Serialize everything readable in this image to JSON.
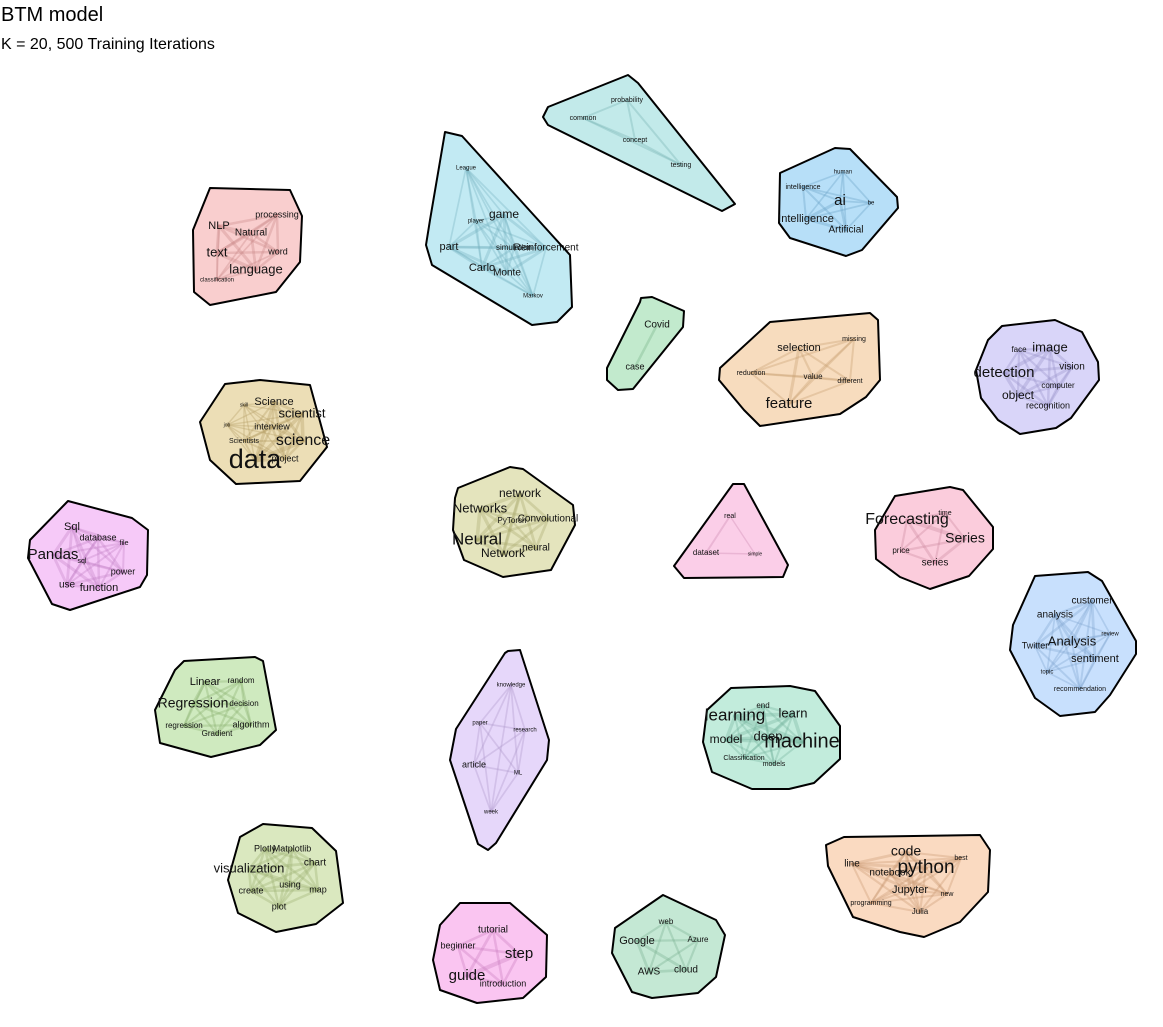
{
  "header": {
    "title": "BTM model",
    "subtitle": "K = 20, 500 Training Iterations"
  },
  "topics": [
    {
      "id": "nlp",
      "color": "#f4a6a6",
      "terms": [
        "NLP",
        "processing",
        "Natural",
        "text",
        "word",
        "language",
        "classification"
      ]
    },
    {
      "id": "reinforcement",
      "color": "#8fd8ea",
      "terms": [
        "League",
        "game",
        "player",
        "part",
        "simulation",
        "Reinforcement",
        "Carlo",
        "Monte",
        "Markov"
      ]
    },
    {
      "id": "probability",
      "color": "#8fd8d8",
      "terms": [
        "probability",
        "common",
        "concept",
        "testing"
      ]
    },
    {
      "id": "ai",
      "color": "#7cc4f2",
      "terms": [
        "human",
        "intelligence",
        "ai",
        "be",
        "Intelligence",
        "Artificial"
      ]
    },
    {
      "id": "covid",
      "color": "#8fd9a4",
      "terms": [
        "Covid",
        "case"
      ]
    },
    {
      "id": "feature",
      "color": "#f0c088",
      "terms": [
        "selection",
        "missing",
        "reduction",
        "value",
        "different",
        "feature"
      ]
    },
    {
      "id": "vision",
      "color": "#b9b3f4",
      "terms": [
        "face",
        "image",
        "detection",
        "vision",
        "computer",
        "object",
        "recognition"
      ]
    },
    {
      "id": "datascience",
      "color": "#dcc27a",
      "terms": [
        "Science",
        "skill",
        "scientist",
        "interview",
        "job",
        "Scientists",
        "science",
        "data",
        "project"
      ]
    },
    {
      "id": "neural",
      "color": "#cdcd86",
      "terms": [
        "network",
        "Networks",
        "PyTorch",
        "Convolutional",
        "Neural",
        "neural",
        "Network"
      ]
    },
    {
      "id": "dataset",
      "color": "#f8a6d6",
      "terms": [
        "real",
        "dataset",
        "simple"
      ]
    },
    {
      "id": "timeseries",
      "color": "#f7a3bf",
      "terms": [
        "Forecasting",
        "time",
        "Series",
        "price",
        "series"
      ]
    },
    {
      "id": "sql",
      "color": "#ee9cf2",
      "terms": [
        "Sql",
        "database",
        "file",
        "Pandas",
        "sql",
        "power",
        "use",
        "function"
      ]
    },
    {
      "id": "sentiment",
      "color": "#9ac7fb",
      "terms": [
        "customer",
        "analysis",
        "review",
        "Twitter",
        "Analysis",
        "sentiment",
        "topic",
        "recommendation"
      ]
    },
    {
      "id": "regression",
      "color": "#a8d98a",
      "terms": [
        "Linear",
        "random",
        "decision",
        "Regression",
        "regression",
        "algorithm",
        "Gradient"
      ]
    },
    {
      "id": "research",
      "color": "#d2b6f5",
      "terms": [
        "knowledge",
        "paper",
        "research",
        "article",
        "ML",
        "week"
      ]
    },
    {
      "id": "ml",
      "color": "#8fdcc0",
      "terms": [
        "end",
        "learning",
        "learn",
        "model",
        "deep",
        "machine",
        "Classification",
        "models"
      ]
    },
    {
      "id": "viz",
      "color": "#bcd68a",
      "terms": [
        "Plotly",
        "Matplotlib",
        "chart",
        "visualization",
        "using",
        "create",
        "map",
        "plot"
      ]
    },
    {
      "id": "python",
      "color": "#f5bb8e",
      "terms": [
        "code",
        "best",
        "line",
        "python",
        "notebook",
        "Jupyter",
        "new",
        "programming",
        "Julia"
      ]
    },
    {
      "id": "tutorial",
      "color": "#f596e6",
      "terms": [
        "tutorial",
        "beginner",
        "step",
        "guide",
        "introduction"
      ]
    },
    {
      "id": "cloud",
      "color": "#93d6b0",
      "terms": [
        "web",
        "Google",
        "Azure",
        "AWS",
        "cloud"
      ]
    }
  ]
}
